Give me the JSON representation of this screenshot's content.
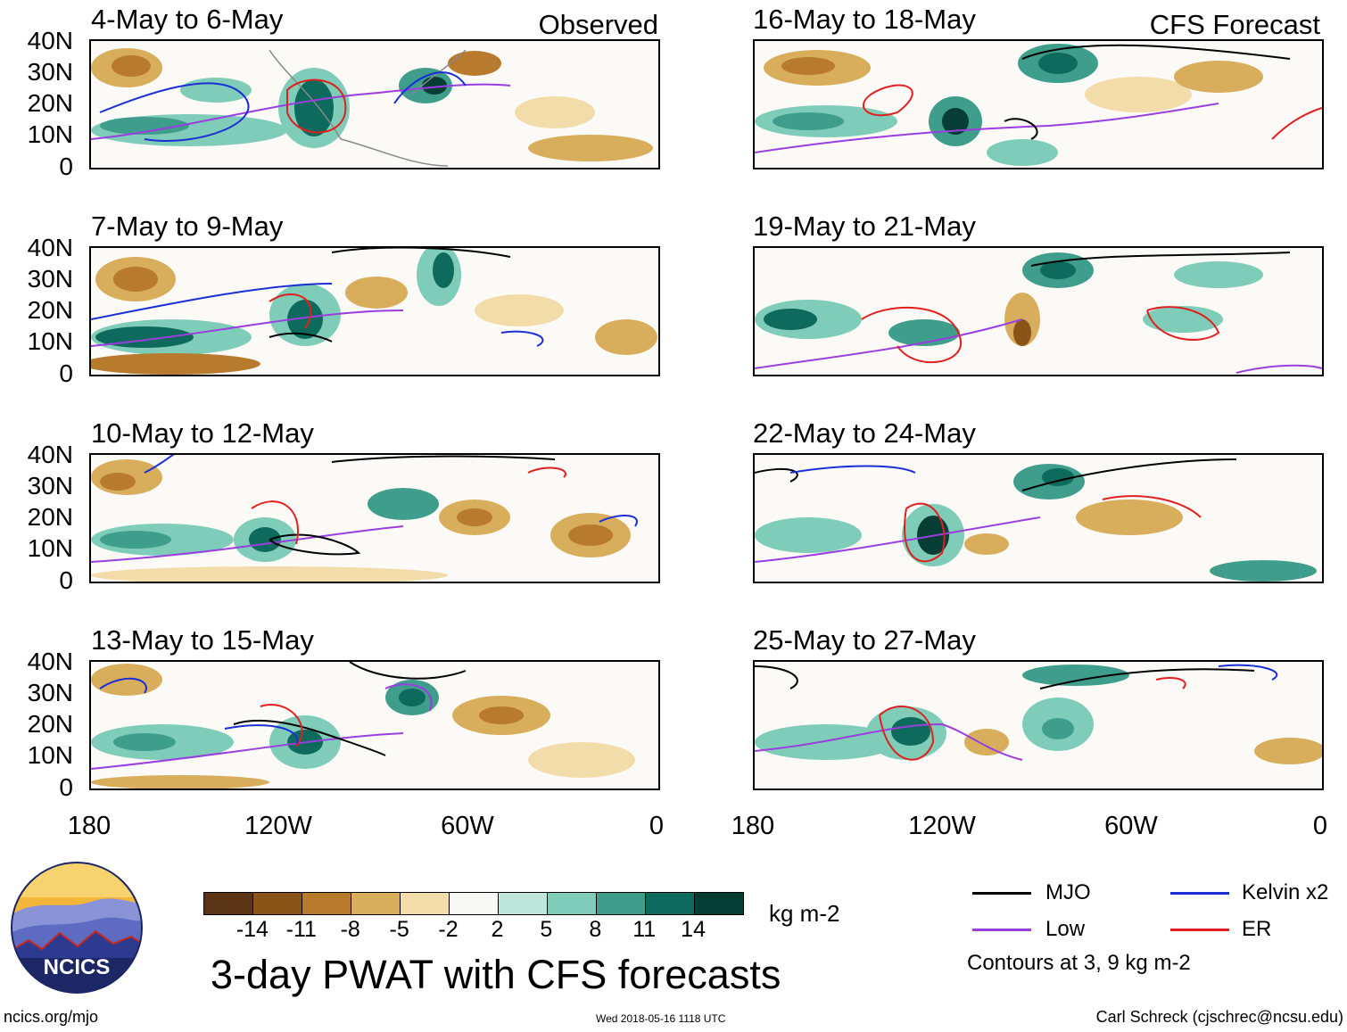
{
  "panels": [
    {
      "title": "4-May to 6-May",
      "tag": "Observed"
    },
    {
      "title": "16-May to 18-May",
      "tag": "CFS Forecast"
    },
    {
      "title": "7-May to 9-May",
      "tag": ""
    },
    {
      "title": "19-May to 21-May",
      "tag": ""
    },
    {
      "title": "10-May to 12-May",
      "tag": ""
    },
    {
      "title": "22-May to 24-May",
      "tag": ""
    },
    {
      "title": "13-May to 15-May",
      "tag": ""
    },
    {
      "title": "25-May to 27-May",
      "tag": ""
    }
  ],
  "lat_labels": [
    "40N",
    "30N",
    "20N",
    "10N",
    "0"
  ],
  "lon_labels": [
    "180",
    "120W",
    "60W",
    "0"
  ],
  "colorbar": {
    "ticks": [
      "-14",
      "-11",
      "-8",
      "-5",
      "-2",
      "2",
      "5",
      "8",
      "11",
      "14"
    ],
    "colors": [
      "#5a3414",
      "#8a5418",
      "#b87a2c",
      "#d8ae5c",
      "#f2dcaa",
      "#f8f8f6",
      "#bfe6da",
      "#7fcdb8",
      "#3f9d8c",
      "#0e6a5c",
      "#063e35"
    ],
    "units": "kg m-2"
  },
  "legend": {
    "items": [
      {
        "label": "MJO",
        "color": "#000000"
      },
      {
        "label": "Kelvin x2",
        "color": "#1a2fd6"
      },
      {
        "label": "Low",
        "color": "#9b3ee0"
      },
      {
        "label": "ER",
        "color": "#e0201e"
      }
    ],
    "note": "Contours at 3, 9 kg m-2"
  },
  "logo": {
    "text": "NCICS"
  },
  "main_title": "3-day PWAT with CFS forecasts",
  "footer": {
    "left": "ncics.org/mjo",
    "center": "Wed 2018-05-16 1118 UTC",
    "right": "Carl Schreck (cjschrec@ncsu.edu)"
  }
}
